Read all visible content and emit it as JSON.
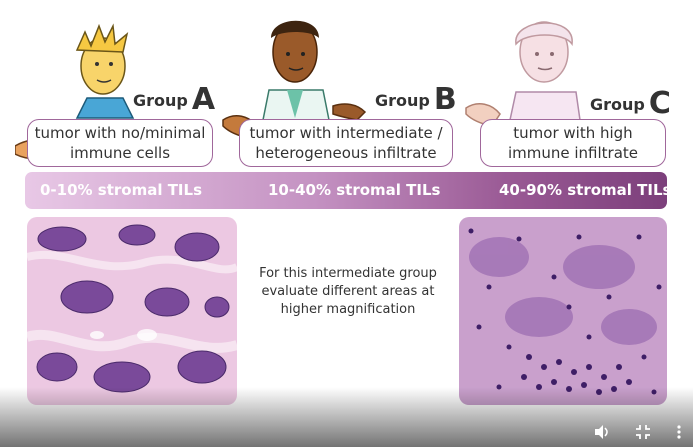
{
  "groups": [
    {
      "word": "Group",
      "letter": "A",
      "bubble_lines": [
        "tumor with no/minimal",
        "immune cells"
      ],
      "til": "0-10% stromal TILs"
    },
    {
      "word": "Group",
      "letter": "B",
      "bubble_lines": [
        "tumor with intermediate /",
        "heterogeneous infiltrate"
      ],
      "til": "10-40% stromal TILs"
    },
    {
      "word": "Group",
      "letter": "C",
      "bubble_lines": [
        "tumor with high",
        "immune infiltrate"
      ],
      "til": "40-90% stromal TILs"
    }
  ],
  "center_note": [
    "For this intermediate group",
    "evaluate different areas at",
    "higher magnification"
  ],
  "player": {
    "volume_icon": "volume-icon",
    "fullscreen_icon": "exit-fullscreen-icon",
    "menu_icon": "more-vertical-icon"
  },
  "colors": {
    "accent": "#a0679b",
    "bar_start": "#e8c8e6",
    "bar_end": "#7c3f7b",
    "tissue_pink": "#e7b6d9",
    "nuclei": "#5b2d7a"
  }
}
